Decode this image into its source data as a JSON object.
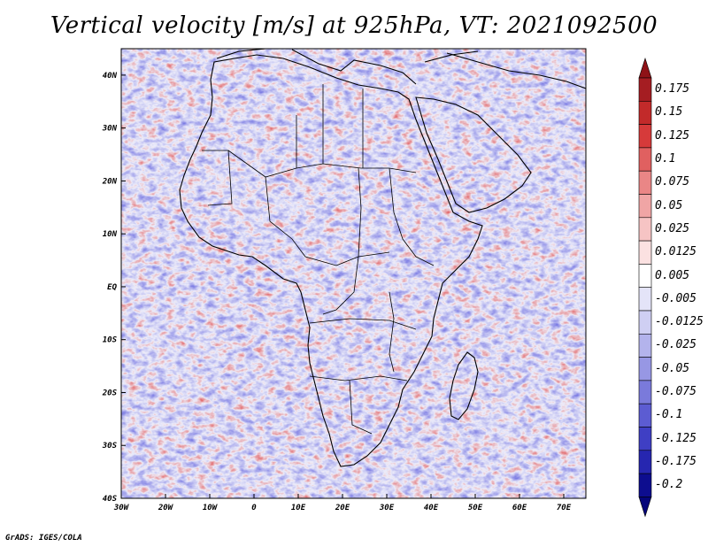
{
  "title": "Vertical velocity [m/s] at 925hPa, VT: 2021092500",
  "footer": "GrADS: IGES/COLA",
  "map": {
    "lon_labels": [
      "30W",
      "20W",
      "10W",
      "0",
      "10E",
      "20E",
      "30E",
      "40E",
      "50E",
      "60E",
      "70E"
    ],
    "lat_labels": [
      "40N",
      "30N",
      "20N",
      "10N",
      "EQ",
      "10S",
      "20S",
      "30S",
      "40S"
    ],
    "lon_range": [
      -30,
      75
    ],
    "lat_range": [
      -40,
      45
    ],
    "field": "vertical velocity",
    "units": "m/s"
  },
  "colorbar": {
    "labels": [
      "0.175",
      "0.15",
      "0.125",
      "0.1",
      "0.075",
      "0.05",
      "0.025",
      "0.0125",
      "0.005",
      "-0.005",
      "-0.0125",
      "-0.025",
      "-0.05",
      "-0.075",
      "-0.1",
      "-0.125",
      "-0.175",
      "-0.2"
    ],
    "colors": [
      "#a51d22",
      "#c22a2a",
      "#d63a3a",
      "#e06060",
      "#ea8686",
      "#f0a5a5",
      "#f6c4c4",
      "#fbe1e1",
      "#ffffff",
      "#e4e4f8",
      "#cfcff3",
      "#b3b3ec",
      "#9797e4",
      "#7a7adb",
      "#5c5cd2",
      "#3f3fc4",
      "#2626b0",
      "#0d0d8f"
    ],
    "top_color": "#8f1217",
    "bottom_color": "#05057a"
  }
}
